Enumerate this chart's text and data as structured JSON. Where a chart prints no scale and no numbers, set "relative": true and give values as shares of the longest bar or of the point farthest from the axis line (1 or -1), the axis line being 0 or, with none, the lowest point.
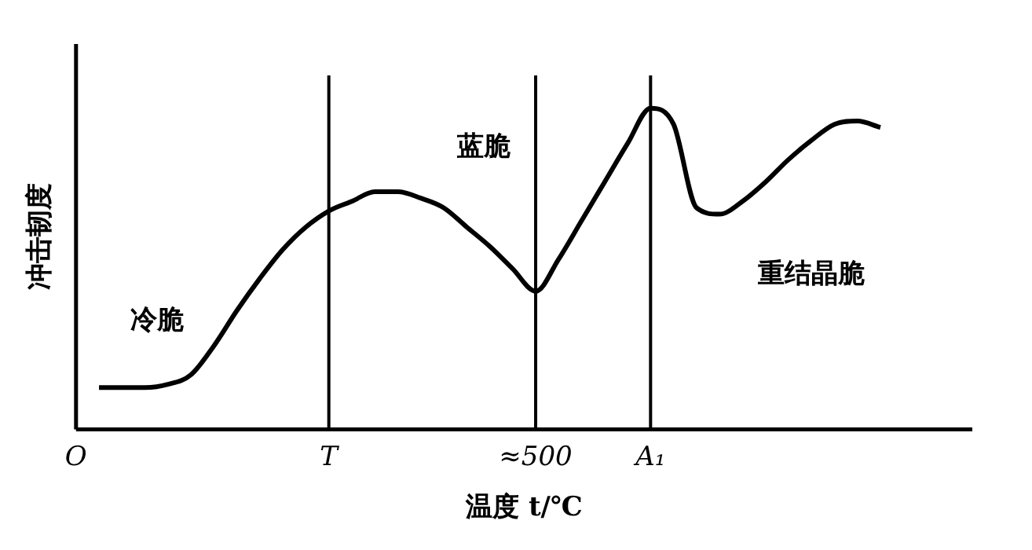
{
  "chart_data": {
    "type": "line",
    "relative": true,
    "xlabel": "温度 t/℃",
    "ylabel": "冲击韧度",
    "categories": [
      "O",
      null,
      null,
      null,
      null,
      null,
      null,
      null,
      null,
      null,
      null,
      "T",
      null,
      null,
      null,
      null,
      null,
      null,
      null,
      null,
      "≈500",
      null,
      null,
      null,
      null,
      "A₁",
      null,
      null,
      null,
      null,
      null,
      null,
      null,
      null,
      null,
      null,
      null,
      null,
      null,
      null
    ],
    "grid": false,
    "legend": false,
    "marker": "none",
    "line_style": "solid",
    "series": [
      {
        "color": "#000000",
        "values": [
          null,
          0.13,
          0.13,
          0.13,
          0.14,
          0.17,
          0.26,
          0.37,
          0.47,
          0.56,
          0.63,
          0.68,
          0.71,
          0.74,
          0.74,
          0.72,
          0.69,
          0.63,
          0.57,
          0.5,
          0.43,
          0.53,
          0.65,
          0.77,
          0.89,
          1.0,
          0.95,
          0.69,
          0.67,
          0.71,
          0.77,
          0.84,
          0.9,
          0.95,
          0.96,
          0.94,
          null,
          null,
          null,
          null
        ]
      }
    ],
    "ref_lines": [
      {
        "axis": "x",
        "value": "T",
        "color": "#000000"
      },
      {
        "axis": "x",
        "value": "≈500",
        "color": "#000000"
      },
      {
        "axis": "x",
        "value": "A₁",
        "color": "#000000"
      }
    ],
    "annotations": [
      "冷脆",
      "蓝脆",
      "重结晶脆"
    ]
  }
}
